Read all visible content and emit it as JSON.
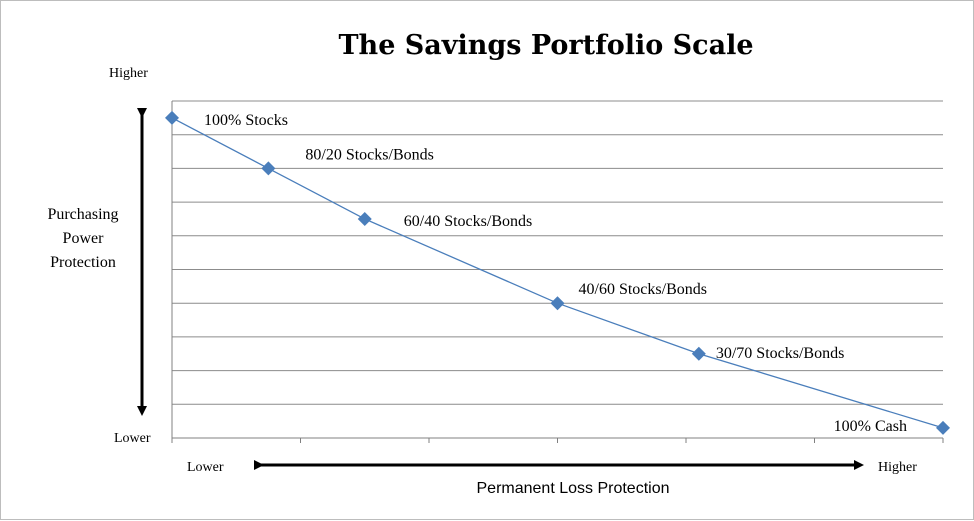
{
  "chart_data": {
    "type": "line",
    "title": "The Savings Portfolio Scale",
    "xlabel": "Permanent Loss Protection",
    "ylabel": "Purchasing Power Protection",
    "x_low_label": "Lower",
    "x_high_label": "Higher",
    "y_high_label": "Higher",
    "y_low_label": "Lower",
    "xlim": [
      0,
      6
    ],
    "ylim": [
      0,
      10
    ],
    "grid": true,
    "series_color": "#4a7ebb",
    "points": [
      {
        "label": "100% Stocks",
        "x": 0,
        "y": 9.5
      },
      {
        "label": "80/20 Stocks/Bonds",
        "x": 0.75,
        "y": 8.0
      },
      {
        "label": "60/40 Stocks/Bonds",
        "x": 1.5,
        "y": 6.5
      },
      {
        "label": "40/60 Stocks/Bonds",
        "x": 3.0,
        "y": 4.0
      },
      {
        "label": "30/70 Stocks/Bonds",
        "x": 4.1,
        "y": 2.5
      },
      {
        "label": "100% Cash",
        "x": 6.0,
        "y": 0.3
      }
    ]
  }
}
